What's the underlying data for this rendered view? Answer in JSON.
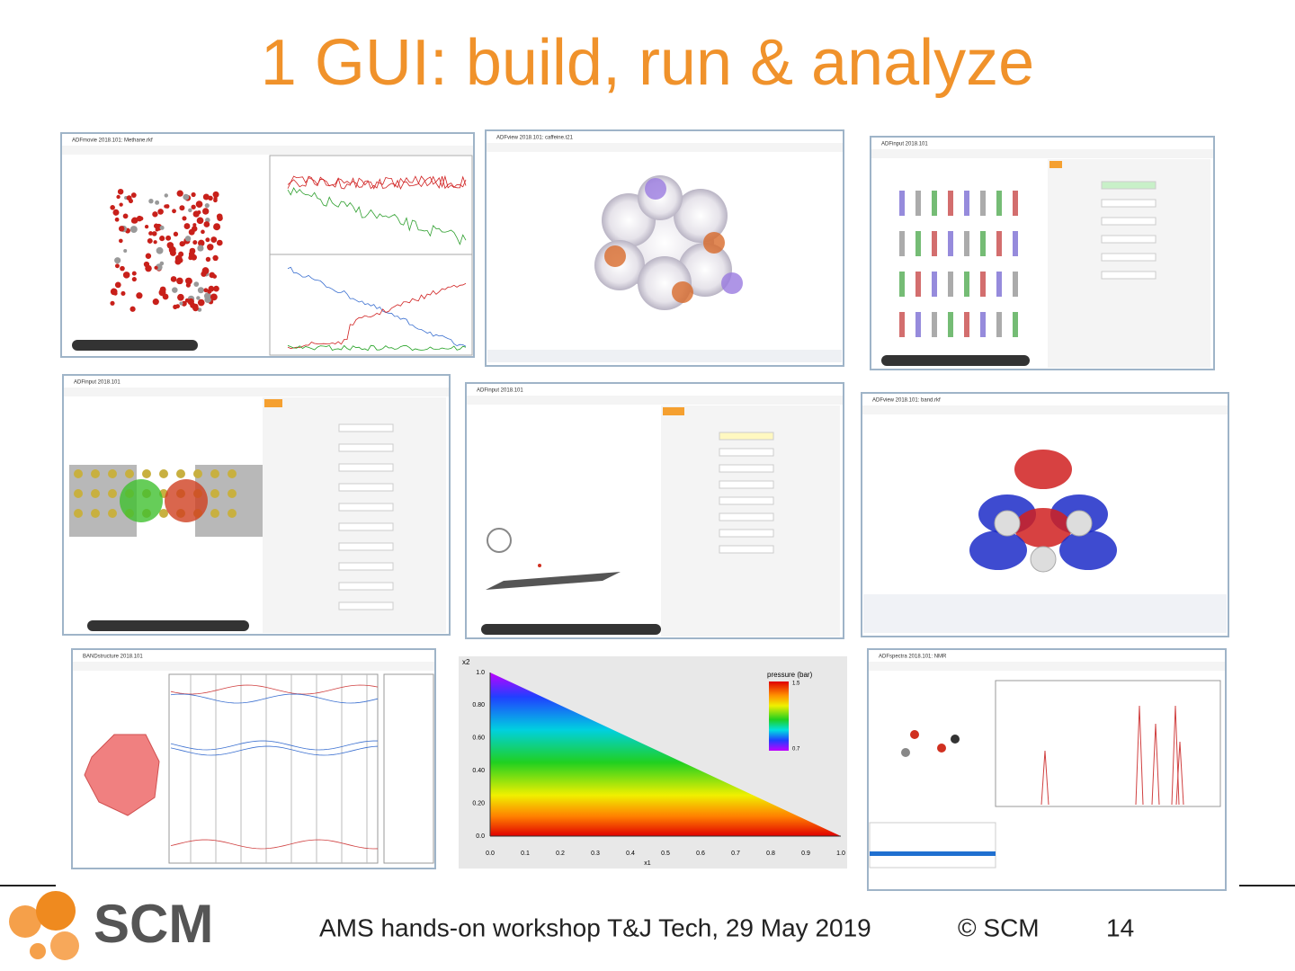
{
  "title": "1 GUI: build, run & analyze",
  "windows": [
    {
      "title": "ADFmovie 2018.101: Methane.rkf"
    },
    {
      "title": "ADFview 2018.101: caffeine.t21"
    },
    {
      "title": "ADFinput 2018.101"
    },
    {
      "title": "ADFinput 2018.101"
    },
    {
      "title": "ADFinput 2018.101"
    },
    {
      "title": "ADFview 2018.101: band.rkf"
    },
    {
      "title": "BANDstructure 2018.101"
    },
    {
      "title": "ADFspectra 2018.101: NMR"
    }
  ],
  "plot": {
    "y_label": "x2",
    "x_label": "x1",
    "colorbar_title": "pressure (bar)",
    "colorbar_ticks": [
      "1.5",
      "0.7"
    ],
    "xticks": [
      "0.0",
      "0.1",
      "0.2",
      "0.3",
      "0.4",
      "0.5",
      "0.6",
      "0.7",
      "0.8",
      "0.9",
      "1.0"
    ],
    "yticks": [
      "0.0",
      "0.20",
      "0.40",
      "0.60",
      "0.80",
      "1.0"
    ]
  },
  "footer": {
    "logo": "SCM",
    "event": "AMS hands-on workshop T&J Tech, 29 May 2019",
    "copyright": "© SCM",
    "page": "14"
  }
}
